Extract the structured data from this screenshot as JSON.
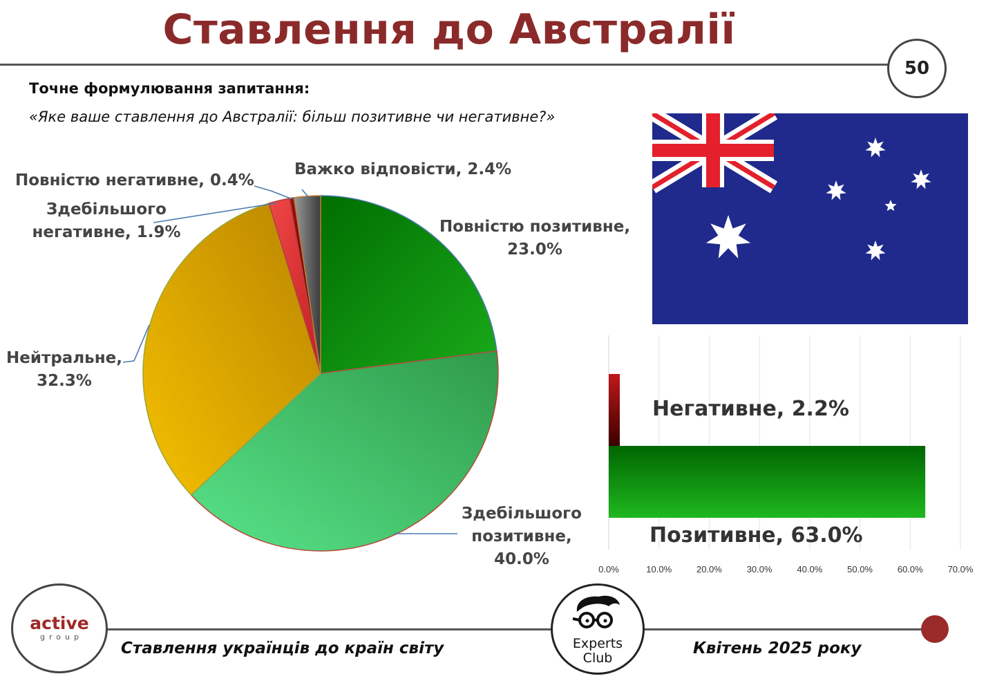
{
  "header": {
    "title": "Ставлення до Австралії",
    "page_number": "50"
  },
  "question": {
    "heading": "Точне формулювання запитання:",
    "text": "«Яке ваше ставлення до Австралії: більш позитивне чи негативне?»"
  },
  "flag": {
    "name": "australia-flag"
  },
  "footer": {
    "left_text": "Ставлення українців до країн світу",
    "right_text": "Квітень 2025 року",
    "logo_active_word": "active",
    "logo_active_sub": "group",
    "logo_experts_line1": "Experts",
    "logo_experts_line2": "Club"
  },
  "colors": {
    "title": "#8b2a2a",
    "accent_dot": "#9b2a2a",
    "flag_blue": "#1f2a8c",
    "flag_red": "#e3202c"
  },
  "chart_data": [
    {
      "type": "pie",
      "slices": [
        {
          "label": "Повністю позитивне",
          "value": 23.0,
          "label_text": "Повністю позитивне,",
          "value_text": "23.0%",
          "color": "#129a12"
        },
        {
          "label": "Здебільшого позитивне",
          "value": 40.0,
          "label_text": "Здебільшого позитивне,",
          "value_text": "40.0%",
          "color": "#4fcf6f"
        },
        {
          "label": "Нейтральне",
          "value": 32.3,
          "label_text": "Нейтральне,",
          "value_text": "32.3%",
          "color": "#d9a300"
        },
        {
          "label": "Здебільшого негативне",
          "value": 1.9,
          "label_text": "Здебільшого негативне,",
          "value_text": "1.9%",
          "color": "#e0373a"
        },
        {
          "label": "Повністю негативне",
          "value": 0.4,
          "label_text": "Повністю негативне,",
          "value_text": "0.4%",
          "color": "#8b1010"
        },
        {
          "label": "Важко відповісти",
          "value": 2.4,
          "label_text": "Важко відповісти,",
          "value_text": "2.4%",
          "color": "#707070"
        }
      ]
    },
    {
      "type": "bar",
      "orientation": "horizontal",
      "categories": [
        "Негативне",
        "Позитивне"
      ],
      "values": [
        2.2,
        63.0
      ],
      "value_texts": [
        "2.2%",
        "63.0%"
      ],
      "colors": [
        "#b01818",
        "#17a317"
      ],
      "xlim": [
        0,
        70
      ],
      "xticks": [
        "0.0%",
        "10.0%",
        "20.0%",
        "30.0%",
        "40.0%",
        "50.0%",
        "60.0%",
        "70.0%"
      ],
      "grid": true
    }
  ]
}
